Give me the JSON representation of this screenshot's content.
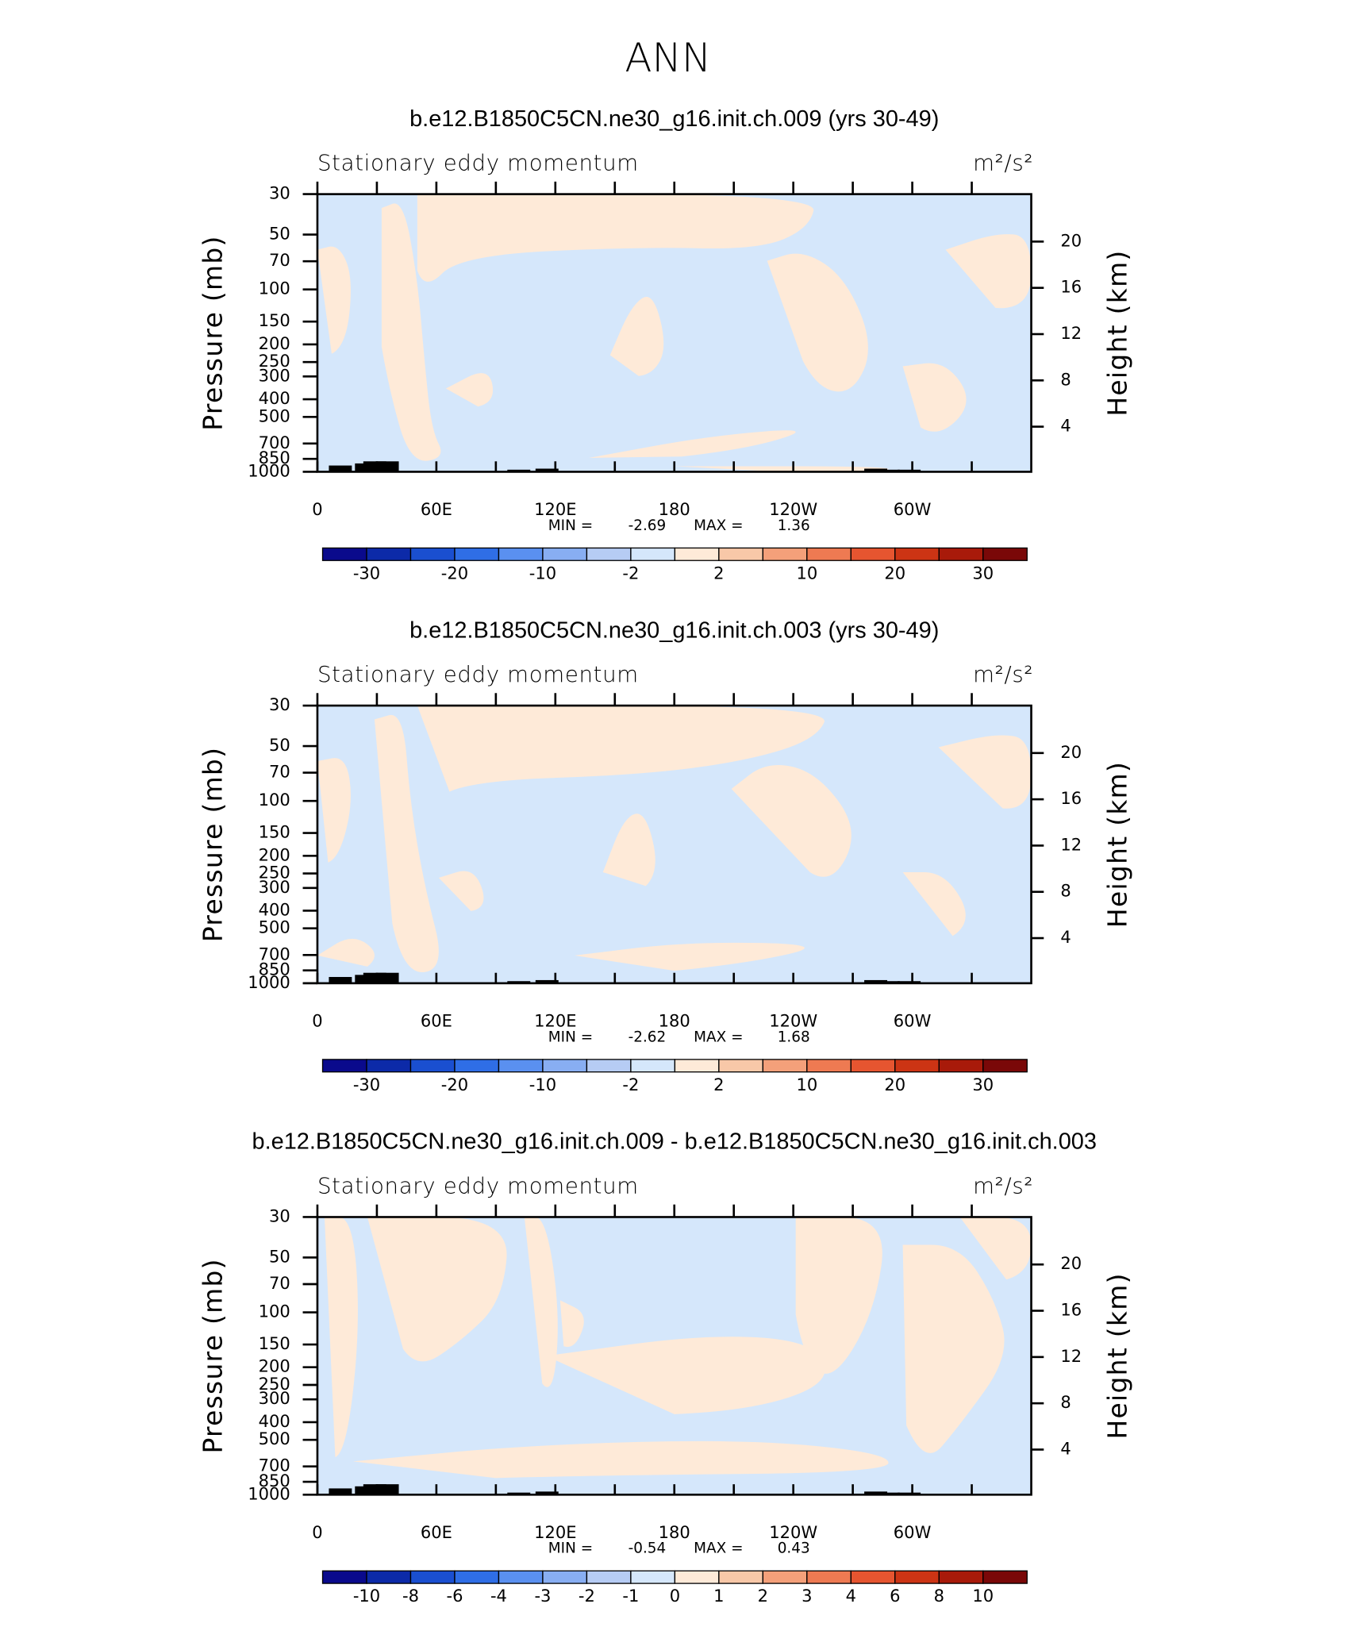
{
  "title": "ANN",
  "chart_data": [
    {
      "type": "contour",
      "title": "b.e12.B1850C5CN.ne30_g16.init.ch.009 (yrs 30-49)",
      "subtitle_left": "Stationary eddy momentum",
      "units": "m²/s²",
      "y_label": "Pressure (mb)",
      "y2_label": "Height (km)",
      "xlim": [
        0,
        360
      ],
      "xticks": [
        0,
        {
          "value": 60,
          "label": "60E"
        },
        {
          "value": 120,
          "label": "120E"
        },
        180,
        {
          "value": 240,
          "label": "120W"
        },
        {
          "value": 300,
          "label": "60W"
        }
      ],
      "xminorticks": [
        30,
        90,
        150,
        210,
        270,
        330
      ],
      "ylim": [
        1000,
        30
      ],
      "ylog": true,
      "yticks": [
        30,
        50,
        70,
        100,
        150,
        200,
        250,
        300,
        400,
        500,
        700,
        850,
        1000
      ],
      "y2lim": [
        0.1,
        24.1
      ],
      "y2ticks": [
        4,
        8,
        12,
        16,
        20
      ],
      "stats": {
        "min_label": "MIN =",
        "min": -2.69,
        "max_label": "MAX =",
        "max": 1.36
      },
      "colorbar": {
        "levels": [
          -30,
          null,
          -20,
          null,
          -10,
          null,
          -2,
          null,
          2,
          null,
          10,
          null,
          20,
          null,
          30
        ],
        "colors": [
          "#0a0a8c",
          "#0c2aa8",
          "#1a4fd0",
          "#2f6ee6",
          "#5a90f0",
          "#88aef2",
          "#b6ccf4",
          "#d5e7fb",
          "#feead8",
          "#f8c8a8",
          "#f4a07a",
          "#ee7a52",
          "#e65530",
          "#cc3414",
          "#a81a0a",
          "#7a0808"
        ]
      }
    },
    {
      "type": "contour",
      "title": "b.e12.B1850C5CN.ne30_g16.init.ch.003 (yrs 30-49)",
      "subtitle_left": "Stationary eddy momentum",
      "units": "m²/s²",
      "y_label": "Pressure (mb)",
      "y2_label": "Height (km)",
      "xlim": [
        0,
        360
      ],
      "xticks": [
        0,
        {
          "value": 60,
          "label": "60E"
        },
        {
          "value": 120,
          "label": "120E"
        },
        180,
        {
          "value": 240,
          "label": "120W"
        },
        {
          "value": 300,
          "label": "60W"
        }
      ],
      "xminorticks": [
        30,
        90,
        150,
        210,
        270,
        330
      ],
      "ylim": [
        1000,
        30
      ],
      "ylog": true,
      "yticks": [
        30,
        50,
        70,
        100,
        150,
        200,
        250,
        300,
        400,
        500,
        700,
        850,
        1000
      ],
      "y2lim": [
        0.1,
        24.1
      ],
      "y2ticks": [
        4,
        8,
        12,
        16,
        20
      ],
      "stats": {
        "min_label": "MIN =",
        "min": -2.62,
        "max_label": "MAX =",
        "max": 1.68
      },
      "colorbar": {
        "levels": [
          -30,
          null,
          -20,
          null,
          -10,
          null,
          -2,
          null,
          2,
          null,
          10,
          null,
          20,
          null,
          30
        ],
        "colors": [
          "#0a0a8c",
          "#0c2aa8",
          "#1a4fd0",
          "#2f6ee6",
          "#5a90f0",
          "#88aef2",
          "#b6ccf4",
          "#d5e7fb",
          "#feead8",
          "#f8c8a8",
          "#f4a07a",
          "#ee7a52",
          "#e65530",
          "#cc3414",
          "#a81a0a",
          "#7a0808"
        ]
      }
    },
    {
      "type": "contour",
      "title": "b.e12.B1850C5CN.ne30_g16.init.ch.009 - b.e12.B1850C5CN.ne30_g16.init.ch.003",
      "subtitle_left": "Stationary eddy momentum",
      "units": "m²/s²",
      "y_label": "Pressure (mb)",
      "y2_label": "Height (km)",
      "xlim": [
        0,
        360
      ],
      "xticks": [
        0,
        {
          "value": 60,
          "label": "60E"
        },
        {
          "value": 120,
          "label": "120E"
        },
        180,
        {
          "value": 240,
          "label": "120W"
        },
        {
          "value": 300,
          "label": "60W"
        }
      ],
      "xminorticks": [
        30,
        90,
        150,
        210,
        270,
        330
      ],
      "ylim": [
        1000,
        30
      ],
      "ylog": true,
      "yticks": [
        30,
        50,
        70,
        100,
        150,
        200,
        250,
        300,
        400,
        500,
        700,
        850,
        1000
      ],
      "y2lim": [
        0.1,
        24.1
      ],
      "y2ticks": [
        4,
        8,
        12,
        16,
        20
      ],
      "stats": {
        "min_label": "MIN =",
        "min": -0.54,
        "max_label": "MAX =",
        "max": 0.43
      },
      "colorbar": {
        "levels": [
          -10,
          -8,
          -6,
          -4,
          -3,
          -2,
          -1,
          0,
          1,
          2,
          3,
          4,
          6,
          8,
          10
        ],
        "colors": [
          "#0a0a8c",
          "#0c2aa8",
          "#1a4fd0",
          "#2f6ee6",
          "#5a90f0",
          "#88aef2",
          "#b6ccf4",
          "#d5e7fb",
          "#feead8",
          "#f8c8a8",
          "#f4a07a",
          "#ee7a52",
          "#e65530",
          "#cc3414",
          "#a81a0a",
          "#7a0808"
        ]
      }
    }
  ]
}
